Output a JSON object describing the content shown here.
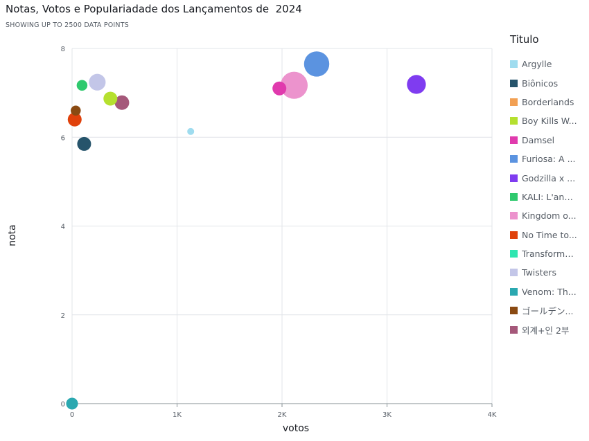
{
  "header": {
    "title": "Notas, Votos e Populariadade dos Lançamentos de  2024",
    "subtitle": "SHOWING UP TO 2500 DATA POINTS"
  },
  "legend": {
    "title": "Titulo",
    "items": [
      {
        "label": "Argylle",
        "color": "#9fdcef"
      },
      {
        "label": "Biônicos",
        "color": "#26546b"
      },
      {
        "label": "Borderlands",
        "color": "#f2a053"
      },
      {
        "label": "Boy Kills W...",
        "color": "#b5e02f"
      },
      {
        "label": "Damsel",
        "color": "#e03aad"
      },
      {
        "label": "Furiosa: A ...",
        "color": "#5b93e0"
      },
      {
        "label": "Godzilla x ...",
        "color": "#7f3cf0"
      },
      {
        "label": "KALI: L'ang...",
        "color": "#2fc96e"
      },
      {
        "label": "Kingdom o...",
        "color": "#ec93cd"
      },
      {
        "label": "No Time to...",
        "color": "#e0410b"
      },
      {
        "label": "Transforme...",
        "color": "#2ee6b0"
      },
      {
        "label": "Twisters",
        "color": "#c3c6e8"
      },
      {
        "label": "Venom: Th...",
        "color": "#2aa8b0"
      },
      {
        "label": "ゴールデン...",
        "color": "#8a4a12"
      },
      {
        "label": "외계+인 2부",
        "color": "#a5587a"
      }
    ]
  },
  "chart_data": {
    "type": "scatter",
    "xlabel": "votos",
    "ylabel": "nota",
    "xlim": [
      0,
      4000
    ],
    "ylim": [
      0,
      8
    ],
    "xticks": [
      {
        "value": 0,
        "label": "0"
      },
      {
        "value": 1000,
        "label": "1K"
      },
      {
        "value": 2000,
        "label": "2K"
      },
      {
        "value": 3000,
        "label": "3K"
      },
      {
        "value": 4000,
        "label": "4K"
      }
    ],
    "yticks": [
      {
        "value": 0,
        "label": "0"
      },
      {
        "value": 2,
        "label": "2"
      },
      {
        "value": 4,
        "label": "4"
      },
      {
        "value": 6,
        "label": "6"
      },
      {
        "value": 8,
        "label": "8"
      }
    ],
    "grid": true,
    "legend_position": "right",
    "points": [
      {
        "series": "Argylle",
        "x": 1130,
        "y": 6.13,
        "size": 1
      },
      {
        "series": "Biônicos",
        "x": 115,
        "y": 5.85,
        "size": 2
      },
      {
        "series": "Boy Kills W...",
        "x": 365,
        "y": 6.87,
        "size": 2
      },
      {
        "series": "Damsel",
        "x": 1975,
        "y": 7.1,
        "size": 2
      },
      {
        "series": "Furiosa: A ...",
        "x": 2330,
        "y": 7.65,
        "size": 8
      },
      {
        "series": "Godzilla x ...",
        "x": 3280,
        "y": 7.19,
        "size": 4
      },
      {
        "series": "KALI: L'ang...",
        "x": 95,
        "y": 7.17,
        "size": 1.3
      },
      {
        "series": "Kingdom o...",
        "x": 2115,
        "y": 7.17,
        "size": 9.5
      },
      {
        "series": "No Time to...",
        "x": 25,
        "y": 6.4,
        "size": 2
      },
      {
        "series": "Twisters",
        "x": 240,
        "y": 7.24,
        "size": 3
      },
      {
        "series": "Venom: Th...",
        "x": 0,
        "y": 0,
        "size": 1.5
      },
      {
        "series": "ゴールデン...",
        "x": 35,
        "y": 6.6,
        "size": 1.2
      },
      {
        "series": "외계+인 2부",
        "x": 475,
        "y": 6.78,
        "size": 2.2
      }
    ]
  }
}
